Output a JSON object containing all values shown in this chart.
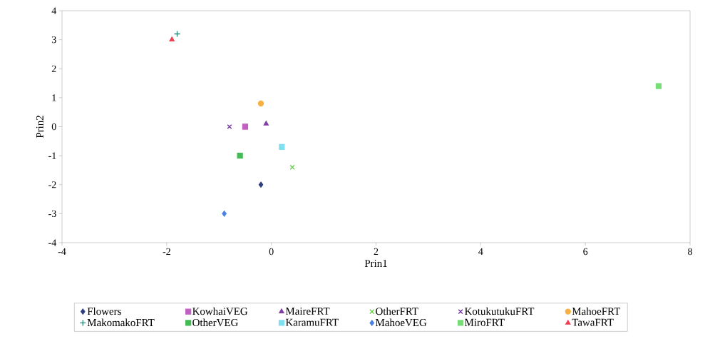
{
  "chart_data": {
    "type": "scatter",
    "xlabel": "Prin1",
    "ylabel": "Prin2",
    "xlim": [
      -4,
      8
    ],
    "ylim": [
      -4,
      4
    ],
    "xticks": [
      -4,
      -2,
      0,
      2,
      4,
      6,
      8
    ],
    "yticks": [
      -4,
      -3,
      -2,
      -1,
      0,
      1,
      2,
      3,
      4
    ],
    "grid": false,
    "legend": "bottom",
    "series": [
      {
        "name": "Flowers",
        "color": "#2e3f7f",
        "marker": "diamond",
        "x": [
          -0.2
        ],
        "values": [
          -2.0
        ]
      },
      {
        "name": "KowhaiVEG",
        "color": "#c060c0",
        "marker": "square",
        "x": [
          -0.5
        ],
        "values": [
          0.0
        ]
      },
      {
        "name": "MaireFRT",
        "color": "#8040a0",
        "marker": "triangle",
        "x": [
          -0.1
        ],
        "values": [
          0.1
        ]
      },
      {
        "name": "OtherFRT",
        "color": "#66cc44",
        "marker": "cross",
        "x": [
          0.4
        ],
        "values": [
          -1.4
        ]
      },
      {
        "name": "KotukutukuFRT",
        "color": "#7030a0",
        "marker": "cross",
        "x": [
          -0.8
        ],
        "values": [
          0.0
        ]
      },
      {
        "name": "MahoeFRT",
        "color": "#f8b040",
        "marker": "circle",
        "x": [
          -0.2
        ],
        "values": [
          0.8
        ]
      },
      {
        "name": "MakomakoFRT",
        "color": "#2a8a7a",
        "marker": "plus",
        "x": [
          -1.8
        ],
        "values": [
          3.2
        ]
      },
      {
        "name": "OtherVEG",
        "color": "#44bb55",
        "marker": "square",
        "x": [
          -0.6
        ],
        "values": [
          -1.0
        ]
      },
      {
        "name": "KaramuFRT",
        "color": "#80e0f0",
        "marker": "square",
        "x": [
          0.2
        ],
        "values": [
          -0.7
        ]
      },
      {
        "name": "MahoeVEG",
        "color": "#4a80e0",
        "marker": "diamond",
        "x": [
          -0.9
        ],
        "values": [
          -3.0
        ]
      },
      {
        "name": "MiroFRT",
        "color": "#77dd77",
        "marker": "square",
        "x": [
          7.4
        ],
        "values": [
          1.4
        ]
      },
      {
        "name": "TawaFRT",
        "color": "#f04050",
        "marker": "triangle",
        "x": [
          -1.9
        ],
        "values": [
          3.0
        ]
      }
    ]
  }
}
